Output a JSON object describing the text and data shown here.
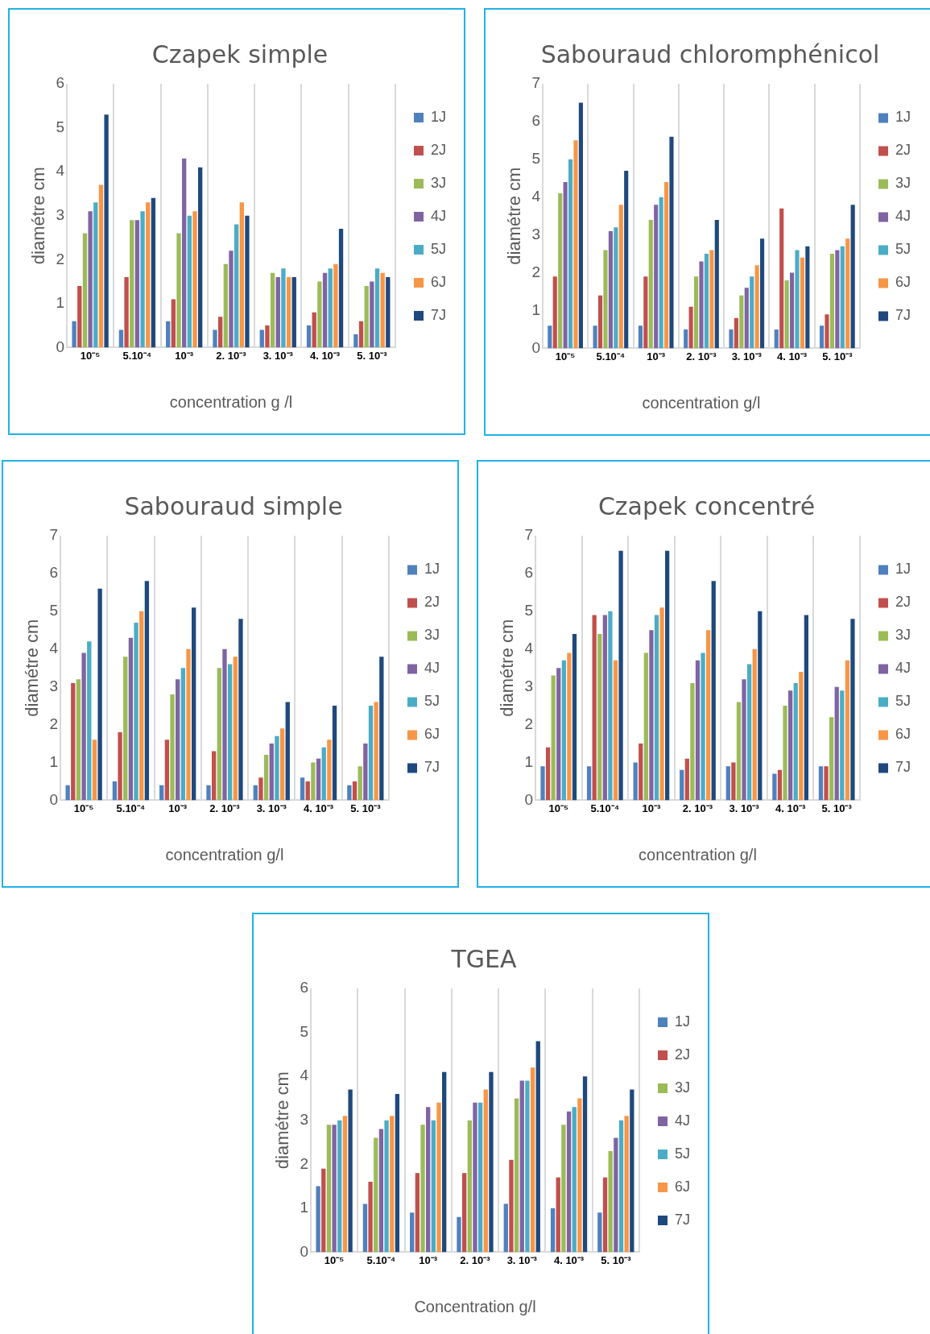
{
  "chart_data": [
    {
      "type": "bar",
      "title": "Czapek simple",
      "xlabel": "concentration g /l",
      "ylabel": "diamétre cm",
      "categories": [
        "10⁻⁵",
        "5.10⁻⁴",
        "10⁻³",
        "2. 10⁻³",
        "3. 10⁻³",
        "4. 10⁻³",
        "5. 10⁻³"
      ],
      "ylim": [
        0,
        6
      ],
      "yticks": [
        0,
        1,
        2,
        3,
        4,
        5,
        6
      ],
      "grid": "x",
      "legend": "right",
      "series": [
        {
          "name": "1J",
          "color": "#4f81bd",
          "values": [
            0.6,
            0.4,
            0.6,
            0.4,
            0.4,
            0.5,
            0.3
          ]
        },
        {
          "name": "2J",
          "color": "#c0504d",
          "values": [
            1.4,
            1.6,
            1.1,
            0.7,
            0.5,
            0.8,
            0.6
          ]
        },
        {
          "name": "3J",
          "color": "#9bbb59",
          "values": [
            2.6,
            2.9,
            2.6,
            1.9,
            1.7,
            1.5,
            1.4
          ]
        },
        {
          "name": "4J",
          "color": "#8064a2",
          "values": [
            3.1,
            2.9,
            4.3,
            2.2,
            1.6,
            1.7,
            1.5
          ]
        },
        {
          "name": "5J",
          "color": "#4bacc6",
          "values": [
            3.3,
            3.1,
            3.0,
            2.8,
            1.8,
            1.8,
            1.8
          ]
        },
        {
          "name": "6J",
          "color": "#f79646",
          "values": [
            3.7,
            3.3,
            3.1,
            3.3,
            1.6,
            1.9,
            1.7
          ]
        },
        {
          "name": "7J",
          "color": "#1f497d",
          "values": [
            5.3,
            3.4,
            4.1,
            3.0,
            1.6,
            2.7,
            1.6
          ]
        }
      ]
    },
    {
      "type": "bar",
      "title": "Sabouraud chloromphénicol",
      "xlabel": "concentration g/l",
      "ylabel": "diamétre cm",
      "categories": [
        "10⁻⁵",
        "5.10⁻⁴",
        "10⁻³",
        "2. 10⁻³",
        "3. 10⁻³",
        "4. 10⁻³",
        "5. 10⁻³"
      ],
      "ylim": [
        0,
        7
      ],
      "yticks": [
        0,
        1,
        2,
        3,
        4,
        5,
        6,
        7
      ],
      "grid": "x",
      "legend": "right",
      "series": [
        {
          "name": "1J",
          "color": "#4f81bd",
          "values": [
            0.6,
            0.6,
            0.6,
            0.5,
            0.5,
            0.5,
            0.6
          ]
        },
        {
          "name": "2J",
          "color": "#c0504d",
          "values": [
            1.9,
            1.4,
            1.9,
            1.1,
            0.8,
            3.7,
            0.9
          ]
        },
        {
          "name": "3J",
          "color": "#9bbb59",
          "values": [
            4.1,
            2.6,
            3.4,
            1.9,
            1.4,
            1.8,
            2.5
          ]
        },
        {
          "name": "4J",
          "color": "#8064a2",
          "values": [
            4.4,
            3.1,
            3.8,
            2.3,
            1.6,
            2.0,
            2.6
          ]
        },
        {
          "name": "5J",
          "color": "#4bacc6",
          "values": [
            5.0,
            3.2,
            4.0,
            2.5,
            1.9,
            2.6,
            2.7
          ]
        },
        {
          "name": "6J",
          "color": "#f79646",
          "values": [
            5.5,
            3.8,
            4.4,
            2.6,
            2.2,
            2.4,
            2.9
          ]
        },
        {
          "name": "7J",
          "color": "#1f497d",
          "values": [
            6.5,
            4.7,
            5.6,
            3.4,
            2.9,
            2.7,
            3.8
          ]
        }
      ]
    },
    {
      "type": "bar",
      "title": "Sabouraud simple",
      "xlabel": "concentration g/l",
      "ylabel": "diamétre cm",
      "categories": [
        "10⁻⁵",
        "5.10⁻⁴",
        "10⁻³",
        "2. 10⁻³",
        "3. 10⁻³",
        "4. 10⁻³",
        "5. 10⁻³"
      ],
      "ylim": [
        0,
        7
      ],
      "yticks": [
        0,
        1,
        2,
        3,
        4,
        5,
        6,
        7
      ],
      "grid": "x",
      "legend": "right",
      "series": [
        {
          "name": "1J",
          "color": "#4f81bd",
          "values": [
            0.4,
            0.5,
            0.4,
            0.4,
            0.4,
            0.6,
            0.4
          ]
        },
        {
          "name": "2J",
          "color": "#c0504d",
          "values": [
            3.1,
            1.8,
            1.6,
            1.3,
            0.6,
            0.5,
            0.5
          ]
        },
        {
          "name": "3J",
          "color": "#9bbb59",
          "values": [
            3.2,
            3.8,
            2.8,
            3.5,
            1.2,
            1.0,
            0.9
          ]
        },
        {
          "name": "4J",
          "color": "#8064a2",
          "values": [
            3.9,
            4.3,
            3.2,
            4.0,
            1.5,
            1.1,
            1.5
          ]
        },
        {
          "name": "5J",
          "color": "#4bacc6",
          "values": [
            4.2,
            4.7,
            3.5,
            3.6,
            1.7,
            1.4,
            2.5
          ]
        },
        {
          "name": "6J",
          "color": "#f79646",
          "values": [
            1.6,
            5.0,
            4.0,
            3.8,
            1.9,
            1.6,
            2.6
          ]
        },
        {
          "name": "7J",
          "color": "#1f497d",
          "values": [
            5.6,
            5.8,
            5.1,
            4.8,
            2.6,
            2.5,
            3.8
          ]
        }
      ]
    },
    {
      "type": "bar",
      "title": "Czapek concentré",
      "xlabel": "concentration g/l",
      "ylabel": "diamétre cm",
      "categories": [
        "10⁻⁵",
        "5.10⁻⁴",
        "10⁻³",
        "2. 10⁻³",
        "3. 10⁻³",
        "4. 10⁻³",
        "5. 10⁻³"
      ],
      "ylim": [
        0,
        7
      ],
      "yticks": [
        0,
        1,
        2,
        3,
        4,
        5,
        6,
        7
      ],
      "grid": "x",
      "legend": "right",
      "series": [
        {
          "name": "1J",
          "color": "#4f81bd",
          "values": [
            0.9,
            0.9,
            1.0,
            0.8,
            0.9,
            0.7,
            0.9
          ]
        },
        {
          "name": "2J",
          "color": "#c0504d",
          "values": [
            1.4,
            4.9,
            1.5,
            1.1,
            1.0,
            0.8,
            0.9
          ]
        },
        {
          "name": "3J",
          "color": "#9bbb59",
          "values": [
            3.3,
            4.4,
            3.9,
            3.1,
            2.6,
            2.5,
            2.2
          ]
        },
        {
          "name": "4J",
          "color": "#8064a2",
          "values": [
            3.5,
            4.9,
            4.5,
            3.7,
            3.2,
            2.9,
            3.0
          ]
        },
        {
          "name": "5J",
          "color": "#4bacc6",
          "values": [
            3.7,
            5.0,
            4.9,
            3.9,
            3.6,
            3.1,
            2.9
          ]
        },
        {
          "name": "6J",
          "color": "#f79646",
          "values": [
            3.9,
            3.7,
            5.1,
            4.5,
            4.0,
            3.4,
            3.7
          ]
        },
        {
          "name": "7J",
          "color": "#1f497d",
          "values": [
            4.4,
            6.6,
            6.6,
            5.8,
            5.0,
            4.9,
            4.8
          ]
        }
      ]
    },
    {
      "type": "bar",
      "title": "TGEA",
      "xlabel": "Concentration g/l",
      "ylabel": "diamétre cm",
      "categories": [
        "10⁻⁵",
        "5.10⁻⁴",
        "10⁻³",
        "2. 10⁻³",
        "3. 10⁻³",
        "4. 10⁻³",
        "5. 10⁻³"
      ],
      "ylim": [
        0,
        6
      ],
      "yticks": [
        0,
        1,
        2,
        3,
        4,
        5,
        6
      ],
      "grid": "x",
      "legend": "right",
      "series": [
        {
          "name": "1J",
          "color": "#4f81bd",
          "values": [
            1.5,
            1.1,
            0.9,
            0.8,
            1.1,
            1.0,
            0.9
          ]
        },
        {
          "name": "2J",
          "color": "#c0504d",
          "values": [
            1.9,
            1.6,
            1.8,
            1.8,
            2.1,
            1.7,
            1.7
          ]
        },
        {
          "name": "3J",
          "color": "#9bbb59",
          "values": [
            2.9,
            2.6,
            2.9,
            3.0,
            3.5,
            2.9,
            2.3
          ]
        },
        {
          "name": "4J",
          "color": "#8064a2",
          "values": [
            2.9,
            2.8,
            3.3,
            3.4,
            3.9,
            3.2,
            2.6
          ]
        },
        {
          "name": "5J",
          "color": "#4bacc6",
          "values": [
            3.0,
            3.0,
            3.0,
            3.4,
            3.9,
            3.3,
            3.0
          ]
        },
        {
          "name": "6J",
          "color": "#f79646",
          "values": [
            3.1,
            3.1,
            3.4,
            3.7,
            4.2,
            3.5,
            3.1
          ]
        },
        {
          "name": "7J",
          "color": "#1f497d",
          "values": [
            3.7,
            3.6,
            4.1,
            4.1,
            4.8,
            4.0,
            3.7
          ]
        }
      ]
    }
  ]
}
